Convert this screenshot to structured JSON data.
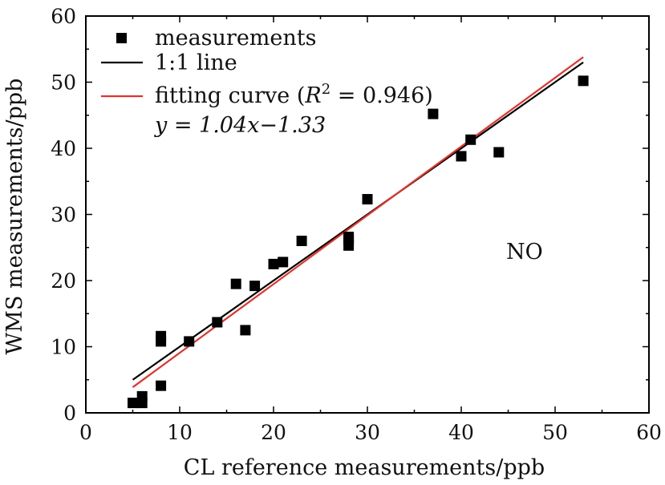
{
  "chart_data": {
    "type": "scatter",
    "xlabel": "CL reference measurements/ppb",
    "ylabel": "WMS measurements/ppb",
    "xlim": [
      0,
      60
    ],
    "ylim": [
      0,
      60
    ],
    "xticks": [
      0,
      10,
      20,
      30,
      40,
      50,
      60
    ],
    "yticks": [
      0,
      10,
      20,
      30,
      40,
      50,
      60
    ],
    "grid": false,
    "legend_position": "top-left",
    "annotation": "NO",
    "series": [
      {
        "name": "measurements",
        "kind": "scatter",
        "color": "#000000",
        "points": [
          [
            5,
            1.5
          ],
          [
            6,
            1.5
          ],
          [
            6,
            2.5
          ],
          [
            8,
            4.1
          ],
          [
            8,
            10.8
          ],
          [
            8,
            11.6
          ],
          [
            11,
            10.8
          ],
          [
            14,
            13.7
          ],
          [
            16,
            19.5
          ],
          [
            17,
            12.5
          ],
          [
            18,
            19.2
          ],
          [
            20,
            22.5
          ],
          [
            21,
            22.8
          ],
          [
            23,
            26.0
          ],
          [
            28,
            25.3
          ],
          [
            28,
            26.2
          ],
          [
            28,
            26.6
          ],
          [
            30,
            32.3
          ],
          [
            37,
            45.2
          ],
          [
            40,
            38.8
          ],
          [
            41,
            41.3
          ],
          [
            44,
            39.4
          ],
          [
            53,
            50.2
          ]
        ]
      },
      {
        "name": "1:1 line",
        "kind": "line",
        "color": "#000000",
        "slope": 1,
        "intercept": 0,
        "x_range": [
          5,
          53
        ]
      },
      {
        "name": "fitting curve",
        "kind": "line",
        "color": "#e0332c",
        "slope": 1.04,
        "intercept": -1.33,
        "x_range": [
          5,
          53
        ],
        "r2": "0.946"
      }
    ],
    "legend": {
      "fit_r_symbol": "R",
      "fit_r_exp": "2",
      "fit_prefix": "fitting curve (",
      "fit_r_value": " = 0.946)",
      "equation": "y = 1.04x−1.33"
    }
  }
}
